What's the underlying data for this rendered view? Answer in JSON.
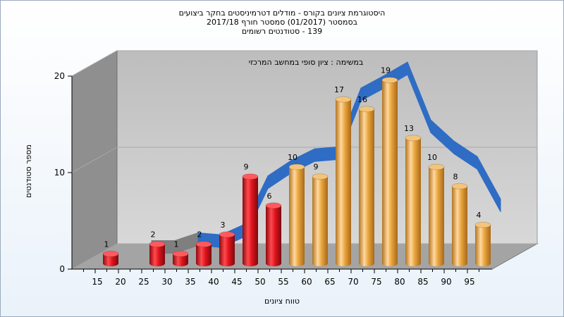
{
  "chart_data": {
    "type": "bar",
    "title_lines": [
      "היסטוגרמת ציונים בקורס - מודלים דטרמיניסטים בחקר ביצועים",
      "בסמסטר  (01/2017)  סמסטר חורף  2017/18",
      "139 - סטודנטים רשומים"
    ],
    "annotation": "במשימה : ציון סופי במחשב המרכזי",
    "xlabel": "טווח ציונים",
    "ylabel": "מספר סטודנטים",
    "x_tick_labels": [
      "15",
      "20",
      "25",
      "30",
      "35",
      "40",
      "45",
      "50",
      "55",
      "60",
      "65",
      "70",
      "75",
      "80",
      "85",
      "90",
      "95"
    ],
    "y_tick_labels": [
      "0",
      "10",
      "20"
    ],
    "ylim": [
      0,
      20
    ],
    "bars": [
      {
        "x": 15,
        "value": 1,
        "color": "red"
      },
      {
        "x": 25,
        "value": 2,
        "color": "red"
      },
      {
        "x": 30,
        "value": 1,
        "color": "red"
      },
      {
        "x": 35,
        "value": 2,
        "color": "red"
      },
      {
        "x": 40,
        "value": 3,
        "color": "red"
      },
      {
        "x": 45,
        "value": 9,
        "color": "red"
      },
      {
        "x": 50,
        "value": 6,
        "color": "red"
      },
      {
        "x": 55,
        "value": 10,
        "color": "orange"
      },
      {
        "x": 60,
        "value": 9,
        "color": "orange"
      },
      {
        "x": 65,
        "value": 17,
        "color": "orange"
      },
      {
        "x": 70,
        "value": 16,
        "color": "orange"
      },
      {
        "x": 75,
        "value": 19,
        "color": "orange"
      },
      {
        "x": 80,
        "value": 13,
        "color": "orange"
      },
      {
        "x": 85,
        "value": 10,
        "color": "orange"
      },
      {
        "x": 90,
        "value": 8,
        "color": "orange"
      },
      {
        "x": 95,
        "value": 4,
        "color": "orange"
      }
    ],
    "curve": {
      "x": [
        25,
        30,
        35,
        40,
        45,
        50,
        55,
        60,
        65,
        70,
        75,
        80,
        85,
        90,
        95,
        100
      ],
      "y": [
        1.5,
        1.5,
        2.3,
        2.1,
        3.2,
        8.2,
        9.8,
        11.0,
        11.2,
        17.3,
        18.6,
        20.0,
        14.0,
        11.8,
        10.2,
        5.8
      ],
      "grey_until_index": 2
    },
    "colors": {
      "red": "#e0141c",
      "orange": "#e9a53c",
      "curve": "#2f6cc4",
      "curve_grey": "#7f7f7f",
      "wall": "#cbcbcb",
      "left_wall": "#8a8a8a",
      "floor": "#a4a4a4"
    }
  }
}
